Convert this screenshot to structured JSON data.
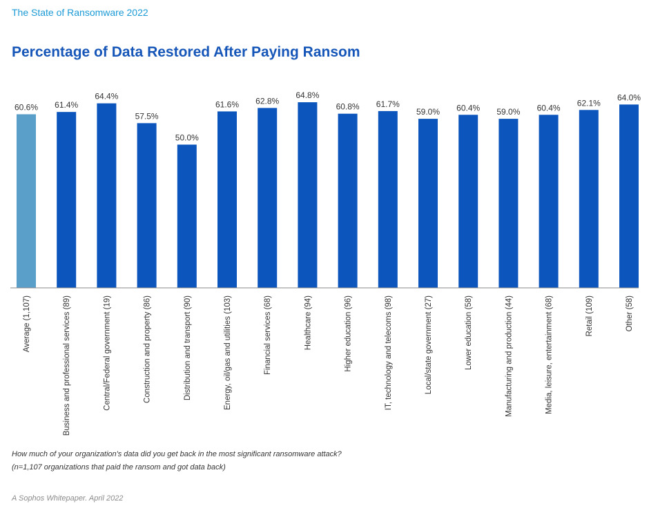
{
  "header": "The State of Ransomware 2022",
  "title": "Percentage of Data Restored After Paying Ransom",
  "colors": {
    "average": "#5a9fc9",
    "bar": "#0b55bd",
    "axis": "#8a8a8a",
    "label": "#333333"
  },
  "chart_data": {
    "type": "bar",
    "title": "Percentage of Data Restored After Paying Ransom",
    "categories": [
      "Average (1,107)",
      "Business and professional services (89)",
      "Central/Federal government (19)",
      "Construction and property (86)",
      "Distribution and transport (90)",
      "Energy, oil/gas and utilities (103)",
      "Financial services (68)",
      "Healthcare (94)",
      "Higher education (96)",
      "IT, technology and telecoms (98)",
      "Local/state government (27)",
      "Lower education (58)",
      "Manufacturing and production (44)",
      "Media, leisure, entertainment (68)",
      "Retail (109)",
      "Other (58)"
    ],
    "values": [
      60.6,
      61.4,
      64.4,
      57.5,
      50.0,
      61.6,
      62.8,
      64.8,
      60.8,
      61.7,
      59.0,
      60.4,
      59.0,
      60.4,
      62.1,
      64.0
    ],
    "value_labels": [
      "60.6%",
      "61.4%",
      "64.4%",
      "57.5%",
      "50.0%",
      "61.6%",
      "62.8%",
      "64.8%",
      "60.8%",
      "61.7%",
      "59.0%",
      "60.4%",
      "59.0%",
      "60.4%",
      "62.1%",
      "64.0%"
    ],
    "xlabel": "",
    "ylabel": "",
    "ylim": [
      0,
      100
    ],
    "grid": false,
    "legend": "none"
  },
  "question": "How much of your organization's data did you get back in the most significant ransomware attack?",
  "sample_note": "(n=1,107 organizations that paid the ransom and got data back)",
  "footer": "A Sophos Whitepaper. April 2022"
}
